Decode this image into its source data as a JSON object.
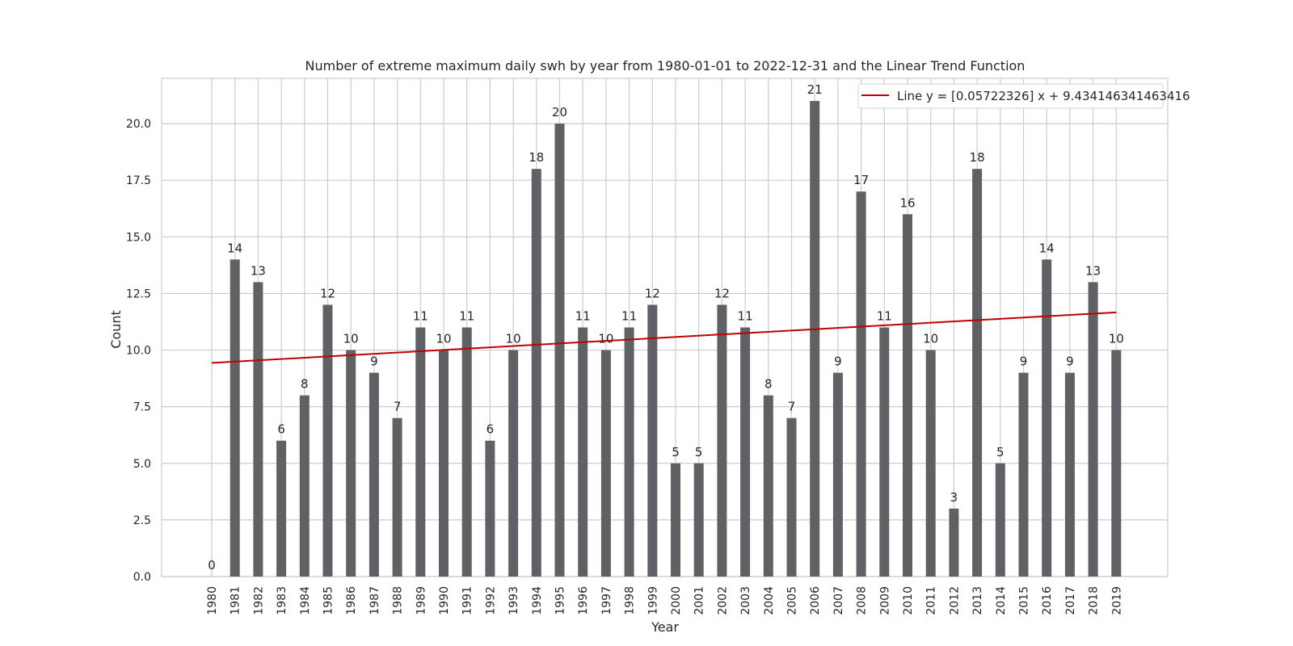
{
  "chart_data": {
    "type": "bar",
    "title": "Number of extreme maximum daily swh by year from 1980-01-01 to 2022-12-31 and the Linear Trend Function",
    "xlabel": "Year",
    "ylabel": "Count",
    "categories": [
      "1980",
      "1981",
      "1982",
      "1983",
      "1984",
      "1985",
      "1986",
      "1987",
      "1988",
      "1989",
      "1990",
      "1991",
      "1992",
      "1993",
      "1994",
      "1995",
      "1996",
      "1997",
      "1998",
      "1999",
      "2000",
      "2001",
      "2002",
      "2003",
      "2004",
      "2005",
      "2006",
      "2007",
      "2008",
      "2009",
      "2010",
      "2011",
      "2012",
      "2013",
      "2014",
      "2015",
      "2016",
      "2017",
      "2018",
      "2019"
    ],
    "values": [
      0,
      14,
      13,
      6,
      8,
      12,
      10,
      9,
      7,
      11,
      10,
      11,
      6,
      10,
      18,
      20,
      11,
      10,
      11,
      12,
      5,
      5,
      12,
      11,
      8,
      7,
      21,
      9,
      17,
      11,
      16,
      10,
      3,
      18,
      5,
      9,
      14,
      9,
      13,
      10
    ],
    "ylim": [
      0,
      22
    ],
    "yticks": [
      "0.0",
      "2.5",
      "5.0",
      "7.5",
      "10.0",
      "12.5",
      "15.0",
      "17.5",
      "20.0"
    ],
    "grid": true,
    "bar_color": "#5f6164",
    "trend_line": {
      "label": "Line $y=[0.05722326]\\,x+9.434146341463416$",
      "legend_text_prefix": "Line ",
      "legend_text_formula": "y = [0.05722326] x + 9.434146341463416",
      "slope": 0.05722326,
      "intercept": 9.434146341463416,
      "color": "#c00000"
    },
    "legend_position": "top-right"
  }
}
